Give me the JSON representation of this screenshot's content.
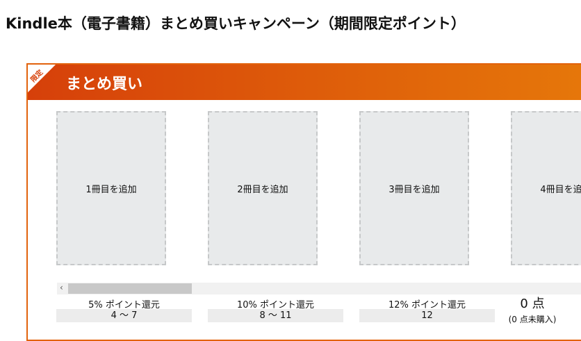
{
  "header": {
    "title": "Kindle本（電子書籍）まとめ買いキャンペーン（期間限定ポイント）"
  },
  "panel": {
    "badge": "限定",
    "banner": "まとめ買い",
    "slots": [
      "1冊目を追加",
      "2冊目を追加",
      "3冊目を追加",
      "4冊目を追加"
    ],
    "tiers": [
      {
        "label": "5% ポイント還元",
        "range": "4 〜 7"
      },
      {
        "label": "10% ポイント還元",
        "range": "8 〜 11"
      },
      {
        "label": "12% ポイント還元",
        "range": "12"
      }
    ],
    "points": "0 点",
    "points_note": "(0 点未購入)"
  }
}
